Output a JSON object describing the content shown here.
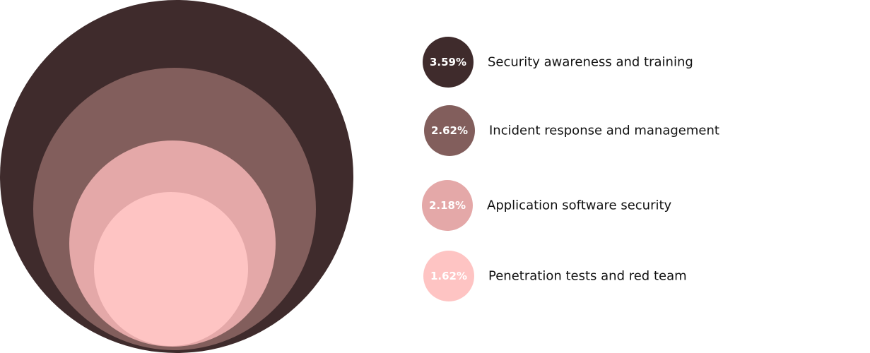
{
  "chart_data": {
    "type": "nested-bubble",
    "title": "",
    "series": [
      {
        "name": "Security awareness and training",
        "value": 3.59,
        "label": "3.59%",
        "color": "#3f2b2c"
      },
      {
        "name": "Incident response and management",
        "value": 2.62,
        "label": "2.62%",
        "color": "#825e5c"
      },
      {
        "name": "Application software security",
        "value": 2.18,
        "label": "2.18%",
        "color": "#e4a8a8"
      },
      {
        "name": "Penetration tests and red team",
        "value": 1.62,
        "label": "1.62%",
        "color": "#fec4c3"
      }
    ],
    "legend": "right"
  }
}
